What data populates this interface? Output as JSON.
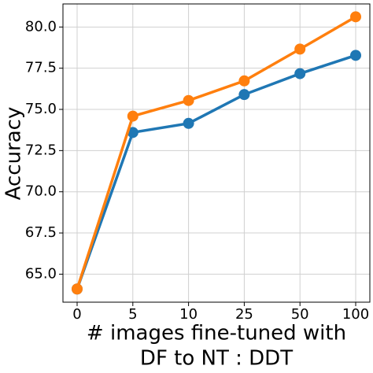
{
  "chart_data": {
    "type": "line",
    "xlabel": [
      "# images fine-tuned with",
      "DF to NT : DDT"
    ],
    "ylabel": "Accuracy",
    "categories": [
      "0",
      "5",
      "10",
      "25",
      "50",
      "100"
    ],
    "series": [
      {
        "color": "#1f77b4",
        "values": [
          64.1,
          73.6,
          74.15,
          75.9,
          77.17,
          78.28
        ]
      },
      {
        "color": "#ff7f0e",
        "values": [
          64.1,
          74.59,
          75.54,
          76.73,
          78.66,
          80.62
        ]
      }
    ],
    "ylim": [
      63.3,
      81.4
    ],
    "yticks": [
      {
        "value": 65,
        "label": "65.0"
      },
      {
        "value": 67.5,
        "label": "67.5"
      },
      {
        "value": 70,
        "label": "70.0"
      },
      {
        "value": 72.5,
        "label": "72.5"
      },
      {
        "value": 75,
        "label": "75.0"
      },
      {
        "value": 77.5,
        "label": "77.5"
      },
      {
        "value": 80,
        "label": "80.0"
      }
    ],
    "grid": true
  }
}
